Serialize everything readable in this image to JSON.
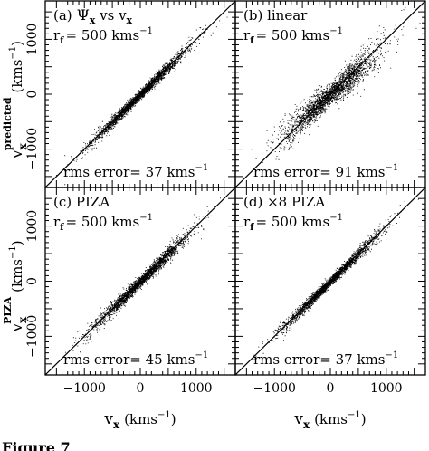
{
  "figure": {
    "ylabel_top": "v",
    "ylabel_top_sub": "x",
    "ylabel_top_sup": "predicted",
    "ylabel_top_unit": "(kms",
    "ylabel_top_unit_exp": "−1",
    "ylabel_top_unit_close": ")",
    "ylabel_bottom": "v",
    "ylabel_bottom_sub": "x",
    "ylabel_bottom_sup": "PIZA",
    "ylabel_bottom_unit": "(kms",
    "ylabel_bottom_unit_exp": "−1",
    "ylabel_bottom_unit_close": ")",
    "xlabel": "v",
    "xlabel_sub": "x",
    "xlabel_unit": "(kms",
    "xlabel_unit_exp": "−1",
    "xlabel_unit_close": ")",
    "caption_fragment": "Figure 7"
  },
  "chart_data": [
    {
      "type": "scatter",
      "panel": "(a)",
      "title_prefix": "(a)",
      "title_symbol": "Ψ",
      "title_symbol_sub": "x",
      "title_mid": "vs",
      "title_var": "v",
      "title_var_sub": "x",
      "rf_label": "r",
      "rf_sub": "f",
      "rf_value": "= 500 kms",
      "rf_exp": "−1",
      "rms_label": "rms error= 37 kms",
      "rms_exp": "−1",
      "rms_error": 37,
      "scatter_sigma": 37,
      "slope": 1.0,
      "xlim": [
        -1700,
        1700
      ],
      "ylim": [
        -1700,
        1700
      ],
      "xticks": [
        -1000,
        0,
        1000
      ],
      "yticks": [
        -1000,
        0,
        1000
      ],
      "diagonal": true
    },
    {
      "type": "scatter",
      "panel": "(b)",
      "title_prefix": "(b)",
      "title_mid": "linear",
      "rf_label": "r",
      "rf_sub": "f",
      "rf_value": "= 500 kms",
      "rf_exp": "−1",
      "rms_label": "rms error= 91 kms",
      "rms_exp": "−1",
      "rms_error": 91,
      "scatter_sigma": 91,
      "slope": 0.9,
      "xlim": [
        -1700,
        1700
      ],
      "ylim": [
        -1700,
        1700
      ],
      "xticks": [
        -1000,
        0,
        1000
      ],
      "yticks": [
        -1000,
        0,
        1000
      ],
      "diagonal": true
    },
    {
      "type": "scatter",
      "panel": "(c)",
      "title_prefix": "(c)",
      "title_mid": "PIZA",
      "rf_label": "r",
      "rf_sub": "f",
      "rf_value": "= 500 kms",
      "rf_exp": "−1",
      "rms_label": "rms error= 45 kms",
      "rms_exp": "−1",
      "rms_error": 45,
      "scatter_sigma": 45,
      "slope": 1.0,
      "xlim": [
        -1700,
        1700
      ],
      "ylim": [
        -1700,
        1700
      ],
      "xticks": [
        -1000,
        0,
        1000
      ],
      "yticks": [
        -1000,
        0,
        1000
      ],
      "diagonal": true
    },
    {
      "type": "scatter",
      "panel": "(d)",
      "title_prefix": "(d)",
      "title_mid": "×8 PIZA",
      "rf_label": "r",
      "rf_sub": "f",
      "rf_value": "= 500 kms",
      "rf_exp": "−1",
      "rms_label": "rms error= 37 kms",
      "rms_exp": "−1",
      "rms_error": 37,
      "scatter_sigma": 37,
      "slope": 1.0,
      "xlim": [
        -1700,
        1700
      ],
      "ylim": [
        -1700,
        1700
      ],
      "xticks": [
        -1000,
        0,
        1000
      ],
      "yticks": [
        -1000,
        0,
        1000
      ],
      "diagonal": true
    }
  ]
}
